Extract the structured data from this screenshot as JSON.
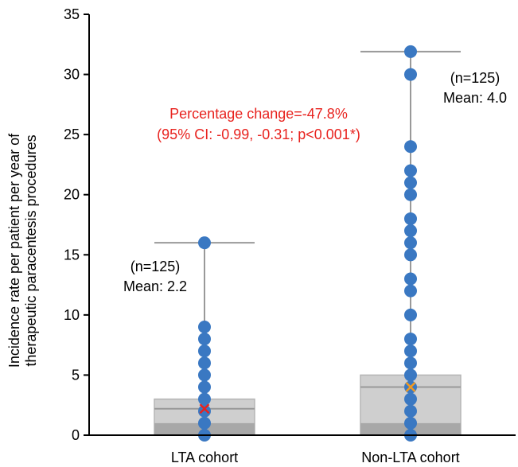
{
  "chart_data": {
    "type": "box-dot",
    "ylabel_lines": [
      "Incidence rate per patient per year of",
      "therapeutic paracentesis procedures"
    ],
    "ylim": [
      0,
      35
    ],
    "yticks": [
      0,
      5,
      10,
      15,
      20,
      25,
      30,
      35
    ],
    "categories": [
      "LTA cohort",
      "Non-LTA cohort"
    ],
    "groups": [
      {
        "name": "LTA cohort",
        "n_label": "(n=125)",
        "mean_label": "Mean: 2.2",
        "mean": 2.2,
        "mean_marker_color": "#e8231f",
        "box": {
          "q1": 0,
          "median": 2.2,
          "q3": 3.0,
          "whisker_high": 16,
          "whisker_low": 0
        },
        "lower_band_top": 1,
        "points": [
          0,
          1,
          2,
          3,
          4,
          5,
          6,
          7,
          8,
          9,
          16
        ]
      },
      {
        "name": "Non-LTA cohort",
        "n_label": "(n=125)",
        "mean_label": "Mean: 4.0",
        "mean": 4.0,
        "mean_marker_color": "#f39a1f",
        "box": {
          "q1": 0,
          "median": 4.0,
          "q3": 5.0,
          "whisker_high": 31.9,
          "whisker_low": 0
        },
        "lower_band_top": 1,
        "points": [
          0,
          1,
          2,
          3,
          4,
          5,
          6,
          7,
          8,
          10,
          12,
          13,
          15,
          16,
          17,
          18,
          20,
          21,
          22,
          24,
          30,
          31.9
        ]
      }
    ],
    "annotation": {
      "line1": "Percentage change=-47.8%",
      "line2": "(95% CI: -0.99, -0.31; p<0.001*)",
      "color": "#e8231f"
    },
    "colors": {
      "point": "#3a78c2",
      "box_fill": "#cfcfcf",
      "lower_band": "#a8a8a8",
      "whisker": "#999999",
      "median_line": "#999999",
      "axis": "#000000"
    }
  }
}
